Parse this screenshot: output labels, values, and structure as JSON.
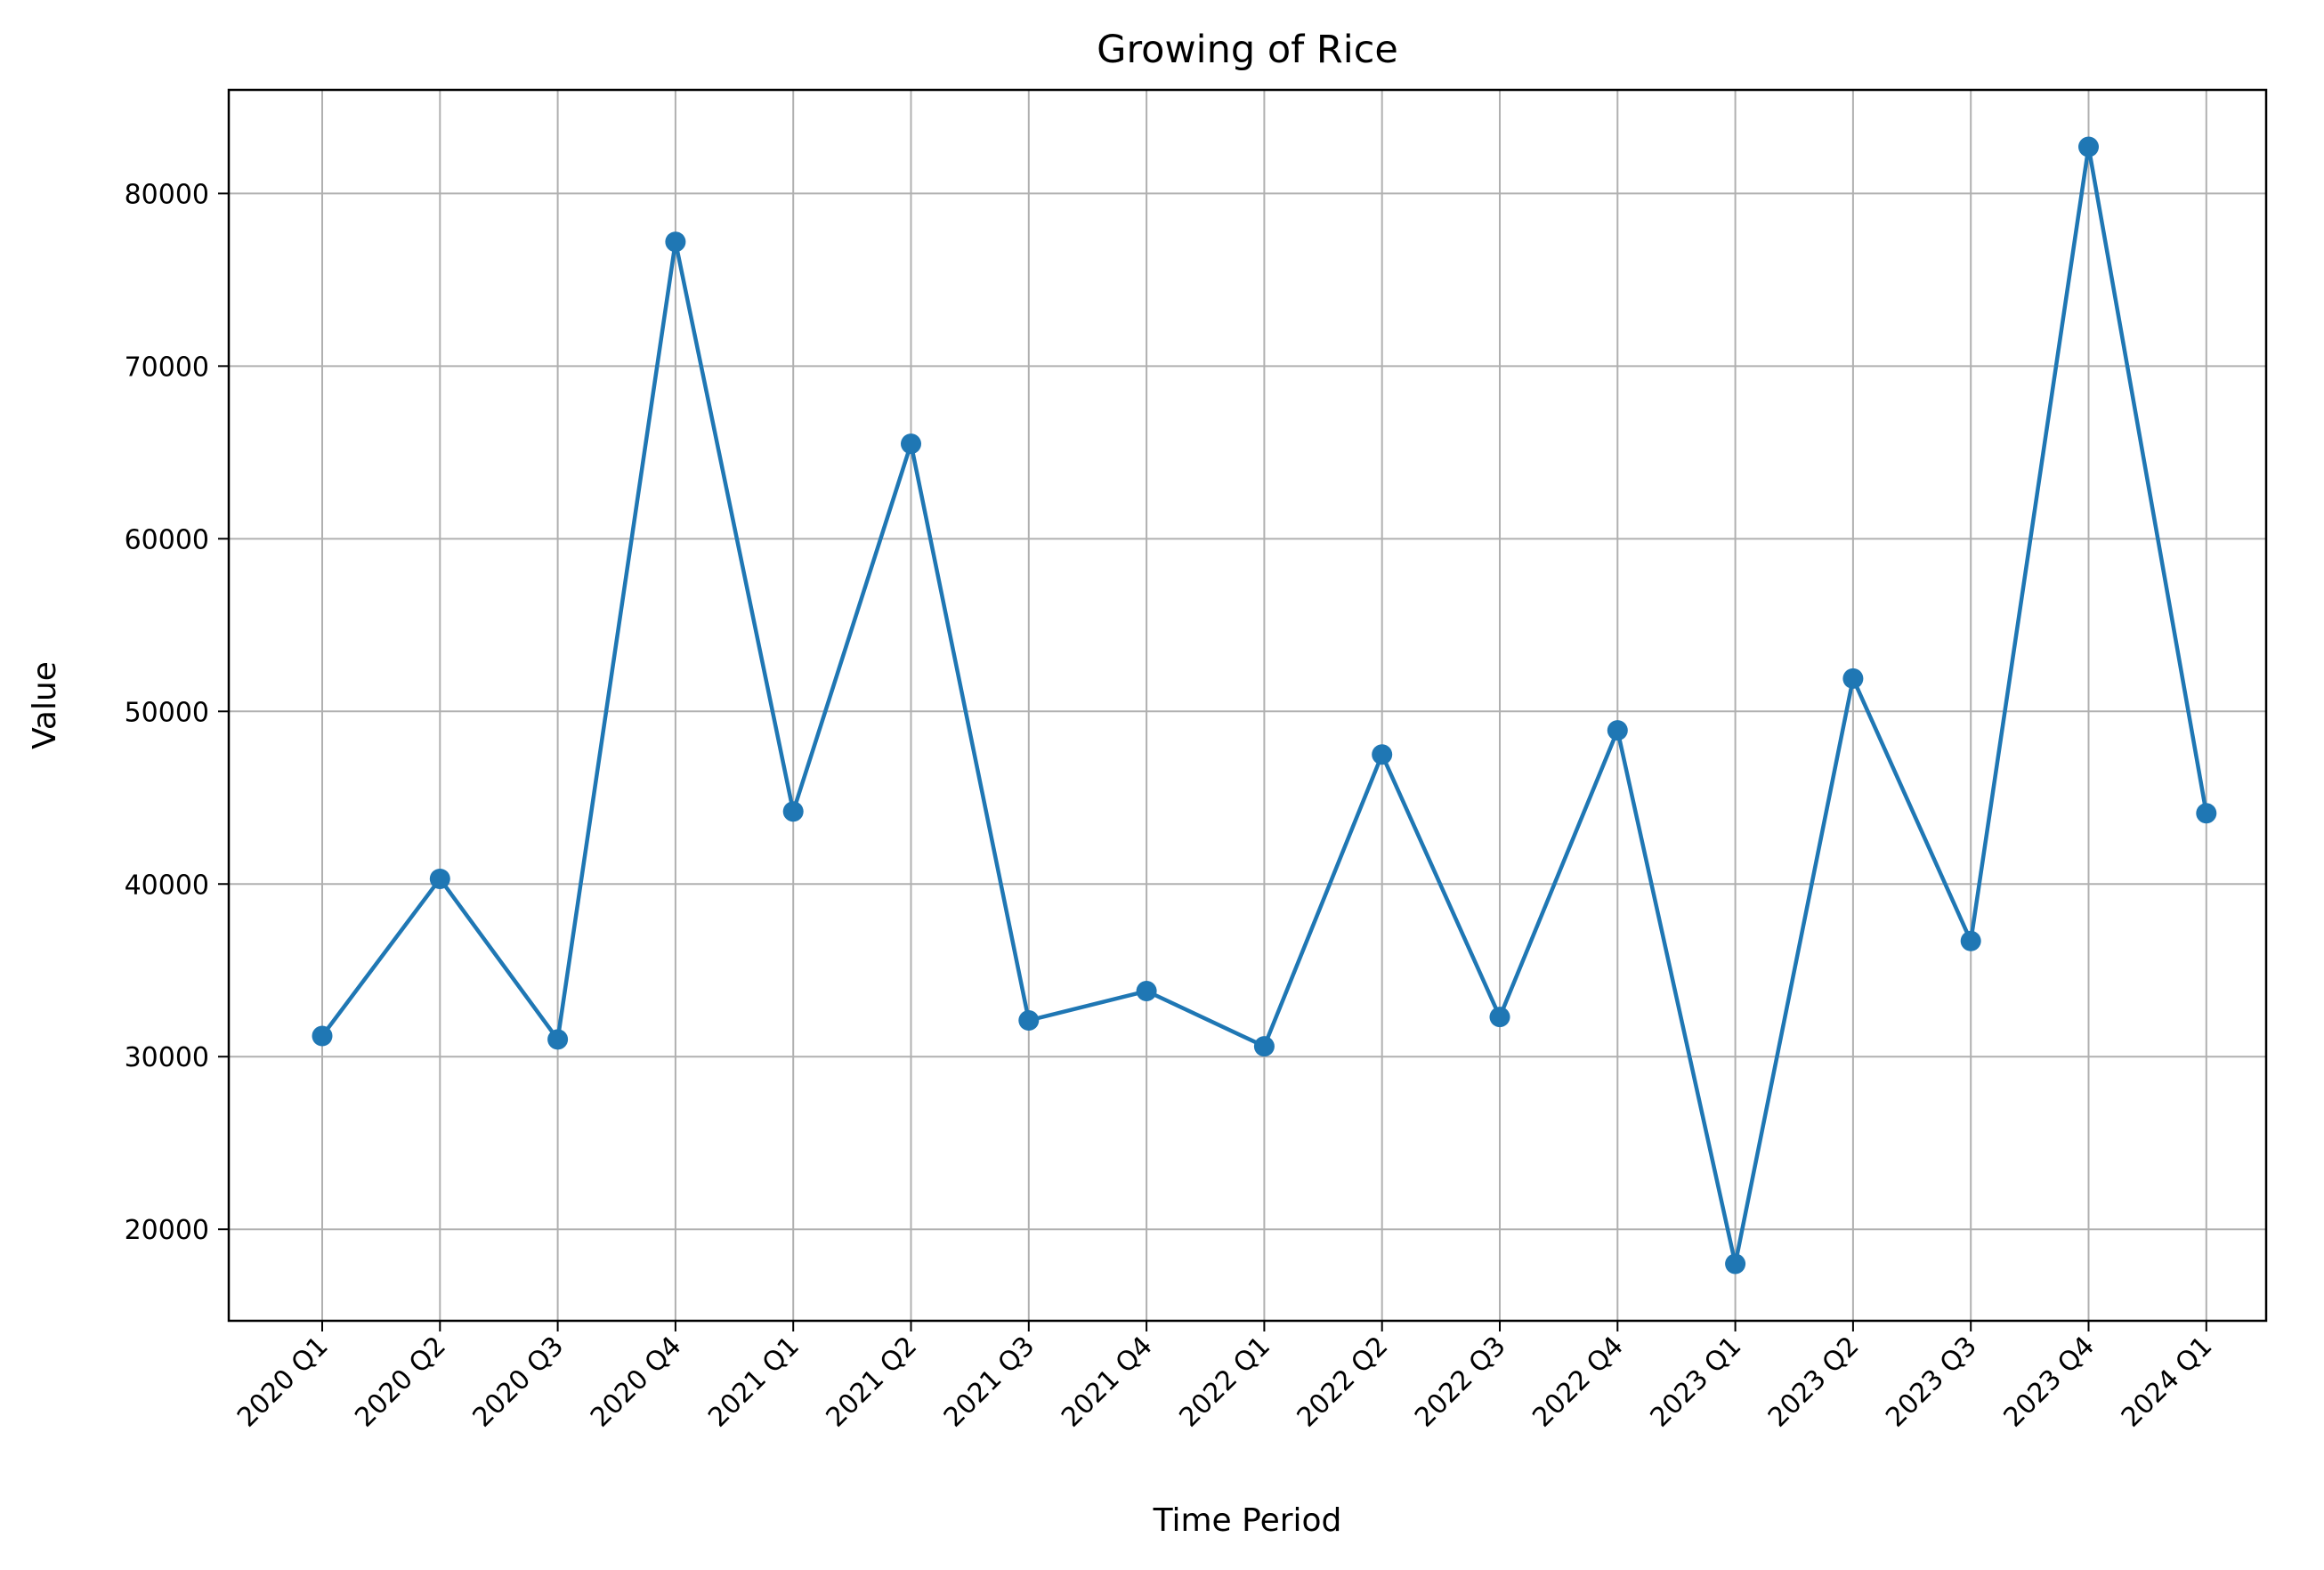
{
  "chart_data": {
    "type": "line",
    "title": "Growing of Rice",
    "xlabel": "Time Period",
    "ylabel": "Value",
    "categories": [
      "2020 Q1",
      "2020 Q2",
      "2020 Q3",
      "2020 Q4",
      "2021 Q1",
      "2021 Q2",
      "2021 Q3",
      "2021 Q4",
      "2022 Q1",
      "2022 Q2",
      "2022 Q3",
      "2022 Q4",
      "2023 Q1",
      "2023 Q2",
      "2023 Q3",
      "2023 Q4",
      "2024 Q1"
    ],
    "series": [
      {
        "values": [
          31200,
          40300,
          31000,
          77200,
          44200,
          65500,
          32100,
          33800,
          30600,
          47500,
          32300,
          48900,
          18000,
          51900,
          36700,
          82700,
          44100
        ],
        "color": "#1f77b4",
        "marker": "circle"
      }
    ],
    "yticks": [
      20000,
      30000,
      40000,
      50000,
      60000,
      70000,
      80000
    ],
    "ytick_labels": [
      "20000",
      "30000",
      "40000",
      "50000",
      "60000",
      "70000",
      "80000"
    ],
    "ylim": [
      14700,
      86000
    ],
    "grid": true,
    "legend": false
  }
}
